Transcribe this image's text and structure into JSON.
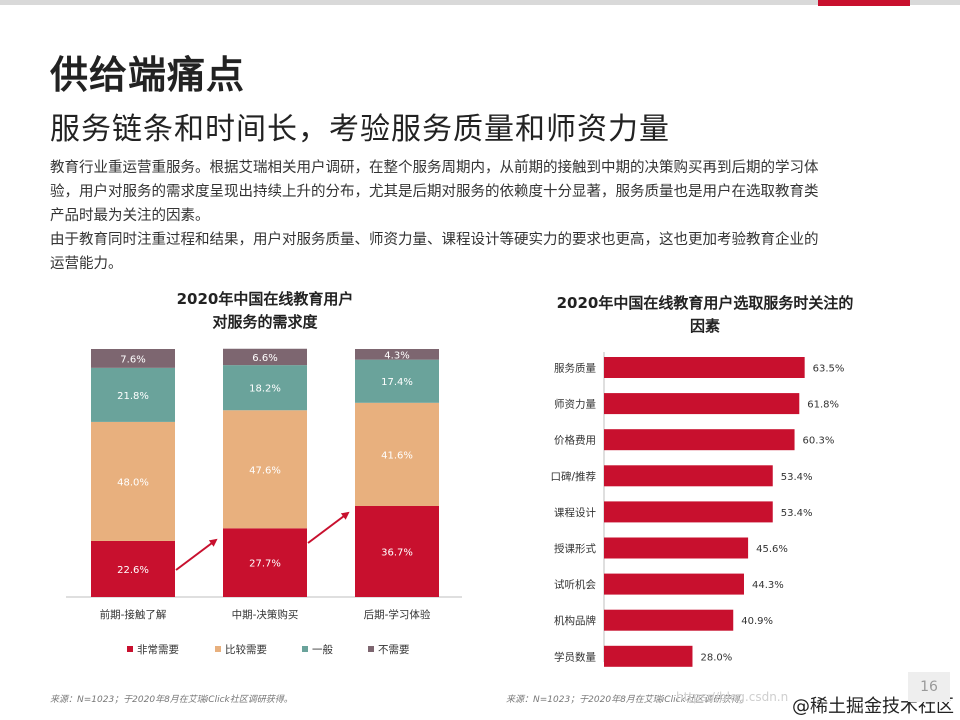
{
  "page": {
    "title": "供给端痛点",
    "subtitle": "服务链条和时间长，考验服务质量和师资力量",
    "paragraph1_line1": "教育行业重运营重服务。根据艾瑞相关用户调研，在整个服务周期内，从前期的接触到中期的决策购买再到后期的学习体",
    "paragraph1_line2": "验，用户对服务的需求度呈现出持续上升的分布，尤其是后期对服务的依赖度十分显著，服务质量也是用户在选取教育类",
    "paragraph1_line3": "产品时最为关注的因素。",
    "paragraph2_line1": "由于教育同时注重过程和结果，用户对服务质量、师资力量、课程设计等硬实力的要求也更高，这也更加考验教育企业的",
    "paragraph2_line2": "运营能力。",
    "source_left": "来源：N=1023；于2020年8月在艾瑞iClick社区调研获得。",
    "source_right": "来源：N=1023；于2020年8月在艾瑞iClick社区调研获得。",
    "watermark_csdn": "https://blog.csdn.n",
    "watermark_juejin": "@稀土掘金技术社区",
    "page_number": "16"
  },
  "colors": {
    "very_needed": "#c8102e",
    "needed": "#e8b07e",
    "neutral": "#6aa39b",
    "not_needed": "#7d6670"
  },
  "chart_data": [
    {
      "type": "bar",
      "stacked": true,
      "title_line1": "2020年中国在线教育用户",
      "title_line2": "对服务的需求度",
      "categories": [
        "前期-接触了解",
        "中期-决策购买",
        "后期-学习体验"
      ],
      "series": [
        {
          "name": "非常需要",
          "values": [
            22.6,
            27.7,
            36.7
          ],
          "labels": [
            "22.6%",
            "27.7%",
            "36.7%"
          ]
        },
        {
          "name": "比较需要",
          "values": [
            48.0,
            47.6,
            41.6
          ],
          "labels": [
            "48.0%",
            "47.6%",
            "41.6%"
          ]
        },
        {
          "name": "一般",
          "values": [
            21.8,
            18.2,
            17.4
          ],
          "labels": [
            "21.8%",
            "18.2%",
            "17.4%"
          ]
        },
        {
          "name": "不需要",
          "values": [
            7.6,
            6.6,
            4.3
          ],
          "labels": [
            "7.6%",
            "6.6%",
            "4.3%"
          ]
        }
      ],
      "ylim": [
        0,
        100
      ],
      "legend": "bottom"
    },
    {
      "type": "bar",
      "orientation": "horizontal",
      "title_line1": "2020年中国在线教育用户选取服务时关注的",
      "title_line2": "因素",
      "categories": [
        "服务质量",
        "师资力量",
        "价格费用",
        "口碑/推荐",
        "课程设计",
        "授课形式",
        "试听机会",
        "机构品牌",
        "学员数量"
      ],
      "values": [
        63.5,
        61.8,
        60.3,
        53.4,
        53.4,
        45.6,
        44.3,
        40.9,
        28.0
      ],
      "labels": [
        "63.5%",
        "61.8%",
        "60.3%",
        "53.4%",
        "53.4%",
        "45.6%",
        "44.3%",
        "40.9%",
        "28.0%"
      ],
      "xlim": [
        0,
        100
      ]
    }
  ]
}
